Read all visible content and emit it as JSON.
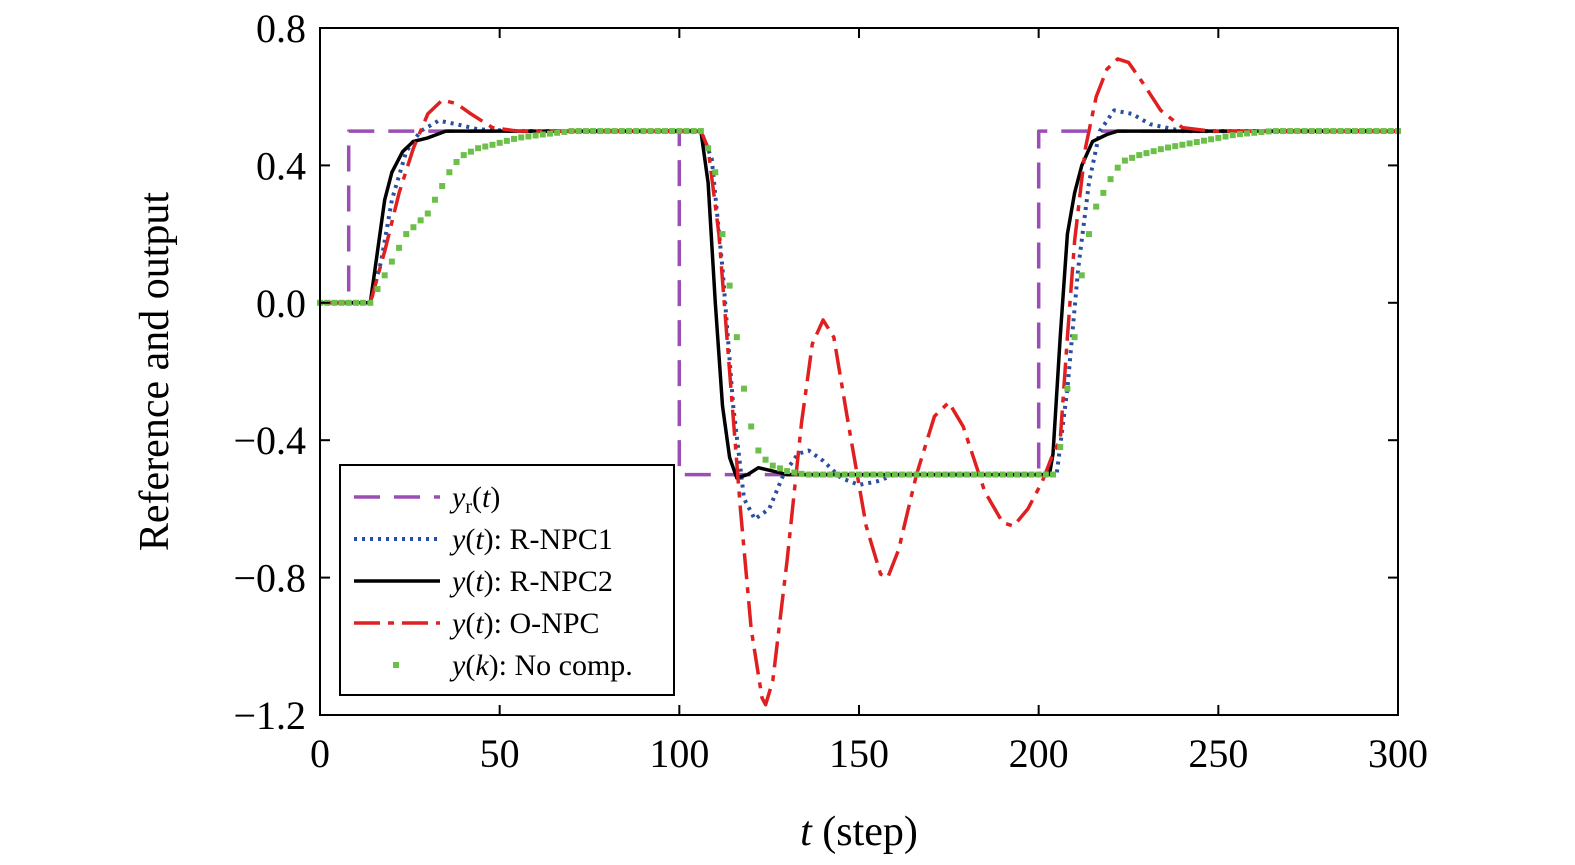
{
  "chart_data": {
    "type": "line",
    "xlabel": {
      "var": "t",
      "rest": " (step)"
    },
    "ylabel": "Reference and output",
    "xlim": [
      0,
      300
    ],
    "ylim": [
      -1.2,
      0.8
    ],
    "xticks": [
      0,
      50,
      100,
      150,
      200,
      250,
      300
    ],
    "yticks": [
      0.8,
      0.4,
      0.0,
      -0.4,
      -0.8,
      -1.2
    ],
    "xtick_labels": [
      "0",
      "50",
      "100",
      "150",
      "200",
      "250",
      "300"
    ],
    "ytick_labels": [
      "0.8",
      "0.4",
      "0.0",
      "−0.4",
      "−0.8",
      "−1.2"
    ],
    "grid": false,
    "legend_position": "bottom-left",
    "series": [
      {
        "key": "ref",
        "legend": {
          "var": "y",
          "sub": "r",
          "arg": "t",
          "suffix": ""
        },
        "color": "#9b4fb5",
        "style": "dashed",
        "points": [
          [
            0,
            0
          ],
          [
            8,
            0
          ],
          [
            8,
            0.5
          ],
          [
            100,
            0.5
          ],
          [
            100,
            -0.5
          ],
          [
            200,
            -0.5
          ],
          [
            200,
            0.5
          ],
          [
            300,
            0.5
          ]
        ]
      },
      {
        "key": "rnpc1",
        "legend": {
          "var": "y",
          "sub": "",
          "arg": "t",
          "suffix": ": R-NPC1"
        },
        "color": "#2a4f9e",
        "style": "dotted",
        "points": [
          [
            0,
            0
          ],
          [
            14,
            0
          ],
          [
            17,
            0.12
          ],
          [
            20,
            0.3
          ],
          [
            24,
            0.44
          ],
          [
            28,
            0.5
          ],
          [
            33,
            0.53
          ],
          [
            38,
            0.52
          ],
          [
            44,
            0.505
          ],
          [
            55,
            0.5
          ],
          [
            106,
            0.5
          ],
          [
            109,
            0.42
          ],
          [
            112,
            0.1
          ],
          [
            115,
            -0.3
          ],
          [
            118,
            -0.57
          ],
          [
            121,
            -0.63
          ],
          [
            125,
            -0.6
          ],
          [
            129,
            -0.5
          ],
          [
            133,
            -0.44
          ],
          [
            136,
            -0.43
          ],
          [
            140,
            -0.46
          ],
          [
            145,
            -0.51
          ],
          [
            150,
            -0.53
          ],
          [
            155,
            -0.52
          ],
          [
            160,
            -0.5
          ],
          [
            200,
            -0.5
          ],
          [
            205,
            -0.5
          ],
          [
            208,
            -0.25
          ],
          [
            211,
            0.1
          ],
          [
            214,
            0.35
          ],
          [
            217,
            0.5
          ],
          [
            221,
            0.56
          ],
          [
            226,
            0.55
          ],
          [
            231,
            0.52
          ],
          [
            240,
            0.5
          ],
          [
            300,
            0.5
          ]
        ]
      },
      {
        "key": "rnpc2",
        "legend": {
          "var": "y",
          "sub": "",
          "arg": "t",
          "suffix": ": R-NPC2"
        },
        "color": "#000000",
        "style": "solid",
        "points": [
          [
            0,
            0
          ],
          [
            14,
            0
          ],
          [
            16,
            0.15
          ],
          [
            18,
            0.3
          ],
          [
            20,
            0.38
          ],
          [
            23,
            0.44
          ],
          [
            26,
            0.47
          ],
          [
            30,
            0.48
          ],
          [
            35,
            0.5
          ],
          [
            106,
            0.5
          ],
          [
            108,
            0.35
          ],
          [
            110,
            0.0
          ],
          [
            112,
            -0.3
          ],
          [
            114,
            -0.45
          ],
          [
            116,
            -0.51
          ],
          [
            119,
            -0.5
          ],
          [
            122,
            -0.48
          ],
          [
            126,
            -0.49
          ],
          [
            130,
            -0.5
          ],
          [
            203,
            -0.5
          ],
          [
            204,
            -0.44
          ],
          [
            206,
            -0.1
          ],
          [
            208,
            0.2
          ],
          [
            210,
            0.32
          ],
          [
            212,
            0.4
          ],
          [
            215,
            0.47
          ],
          [
            219,
            0.49
          ],
          [
            222,
            0.5
          ],
          [
            300,
            0.5
          ]
        ]
      },
      {
        "key": "onpc",
        "legend": {
          "var": "y",
          "sub": "",
          "arg": "t",
          "suffix": ": O-NPC"
        },
        "color": "#e02020",
        "style": "dashdot",
        "points": [
          [
            0,
            0
          ],
          [
            14,
            0
          ],
          [
            18,
            0.15
          ],
          [
            22,
            0.32
          ],
          [
            26,
            0.45
          ],
          [
            30,
            0.55
          ],
          [
            34,
            0.59
          ],
          [
            38,
            0.58
          ],
          [
            42,
            0.55
          ],
          [
            48,
            0.51
          ],
          [
            55,
            0.5
          ],
          [
            106,
            0.5
          ],
          [
            108,
            0.45
          ],
          [
            111,
            0.2
          ],
          [
            114,
            -0.2
          ],
          [
            117,
            -0.6
          ],
          [
            120,
            -0.95
          ],
          [
            123,
            -1.15
          ],
          [
            124,
            -1.17
          ],
          [
            126,
            -1.1
          ],
          [
            130,
            -0.75
          ],
          [
            134,
            -0.35
          ],
          [
            137,
            -0.12
          ],
          [
            140,
            -0.05
          ],
          [
            143,
            -0.1
          ],
          [
            147,
            -0.35
          ],
          [
            152,
            -0.65
          ],
          [
            156,
            -0.79
          ],
          [
            158,
            -0.8
          ],
          [
            161,
            -0.72
          ],
          [
            166,
            -0.5
          ],
          [
            171,
            -0.33
          ],
          [
            175,
            -0.29
          ],
          [
            179,
            -0.36
          ],
          [
            185,
            -0.55
          ],
          [
            190,
            -0.64
          ],
          [
            193,
            -0.65
          ],
          [
            197,
            -0.6
          ],
          [
            201,
            -0.52
          ],
          [
            204,
            -0.44
          ],
          [
            206,
            -0.4
          ],
          [
            208,
            -0.1
          ],
          [
            210,
            0.18
          ],
          [
            213,
            0.45
          ],
          [
            216,
            0.6
          ],
          [
            219,
            0.68
          ],
          [
            222,
            0.71
          ],
          [
            225,
            0.7
          ],
          [
            229,
            0.64
          ],
          [
            234,
            0.56
          ],
          [
            240,
            0.51
          ],
          [
            248,
            0.5
          ],
          [
            300,
            0.5
          ]
        ]
      },
      {
        "key": "nocomp",
        "legend": {
          "var": "y",
          "sub": "",
          "arg": "k",
          "suffix": ": No comp."
        },
        "color": "#6cc04a",
        "style": "markers",
        "points": [
          [
            0,
            0
          ],
          [
            14,
            0
          ],
          [
            16,
            0.04
          ],
          [
            18,
            0.08
          ],
          [
            20,
            0.12
          ],
          [
            22,
            0.16
          ],
          [
            24,
            0.2
          ],
          [
            26,
            0.22
          ],
          [
            28,
            0.24
          ],
          [
            30,
            0.26
          ],
          [
            32,
            0.3
          ],
          [
            34,
            0.34
          ],
          [
            36,
            0.38
          ],
          [
            38,
            0.41
          ],
          [
            40,
            0.43
          ],
          [
            44,
            0.45
          ],
          [
            48,
            0.46
          ],
          [
            55,
            0.48
          ],
          [
            62,
            0.49
          ],
          [
            70,
            0.5
          ],
          [
            106,
            0.5
          ],
          [
            108,
            0.45
          ],
          [
            110,
            0.38
          ],
          [
            112,
            0.2
          ],
          [
            114,
            0.05
          ],
          [
            116,
            -0.1
          ],
          [
            118,
            -0.25
          ],
          [
            120,
            -0.36
          ],
          [
            122,
            -0.43
          ],
          [
            125,
            -0.47
          ],
          [
            130,
            -0.49
          ],
          [
            135,
            -0.5
          ],
          [
            204,
            -0.5
          ],
          [
            206,
            -0.42
          ],
          [
            208,
            -0.25
          ],
          [
            210,
            -0.1
          ],
          [
            212,
            0.08
          ],
          [
            214,
            0.2
          ],
          [
            216,
            0.28
          ],
          [
            218,
            0.32
          ],
          [
            220,
            0.36
          ],
          [
            223,
            0.41
          ],
          [
            228,
            0.43
          ],
          [
            235,
            0.45
          ],
          [
            245,
            0.47
          ],
          [
            255,
            0.49
          ],
          [
            265,
            0.5
          ],
          [
            300,
            0.5
          ]
        ]
      }
    ]
  }
}
